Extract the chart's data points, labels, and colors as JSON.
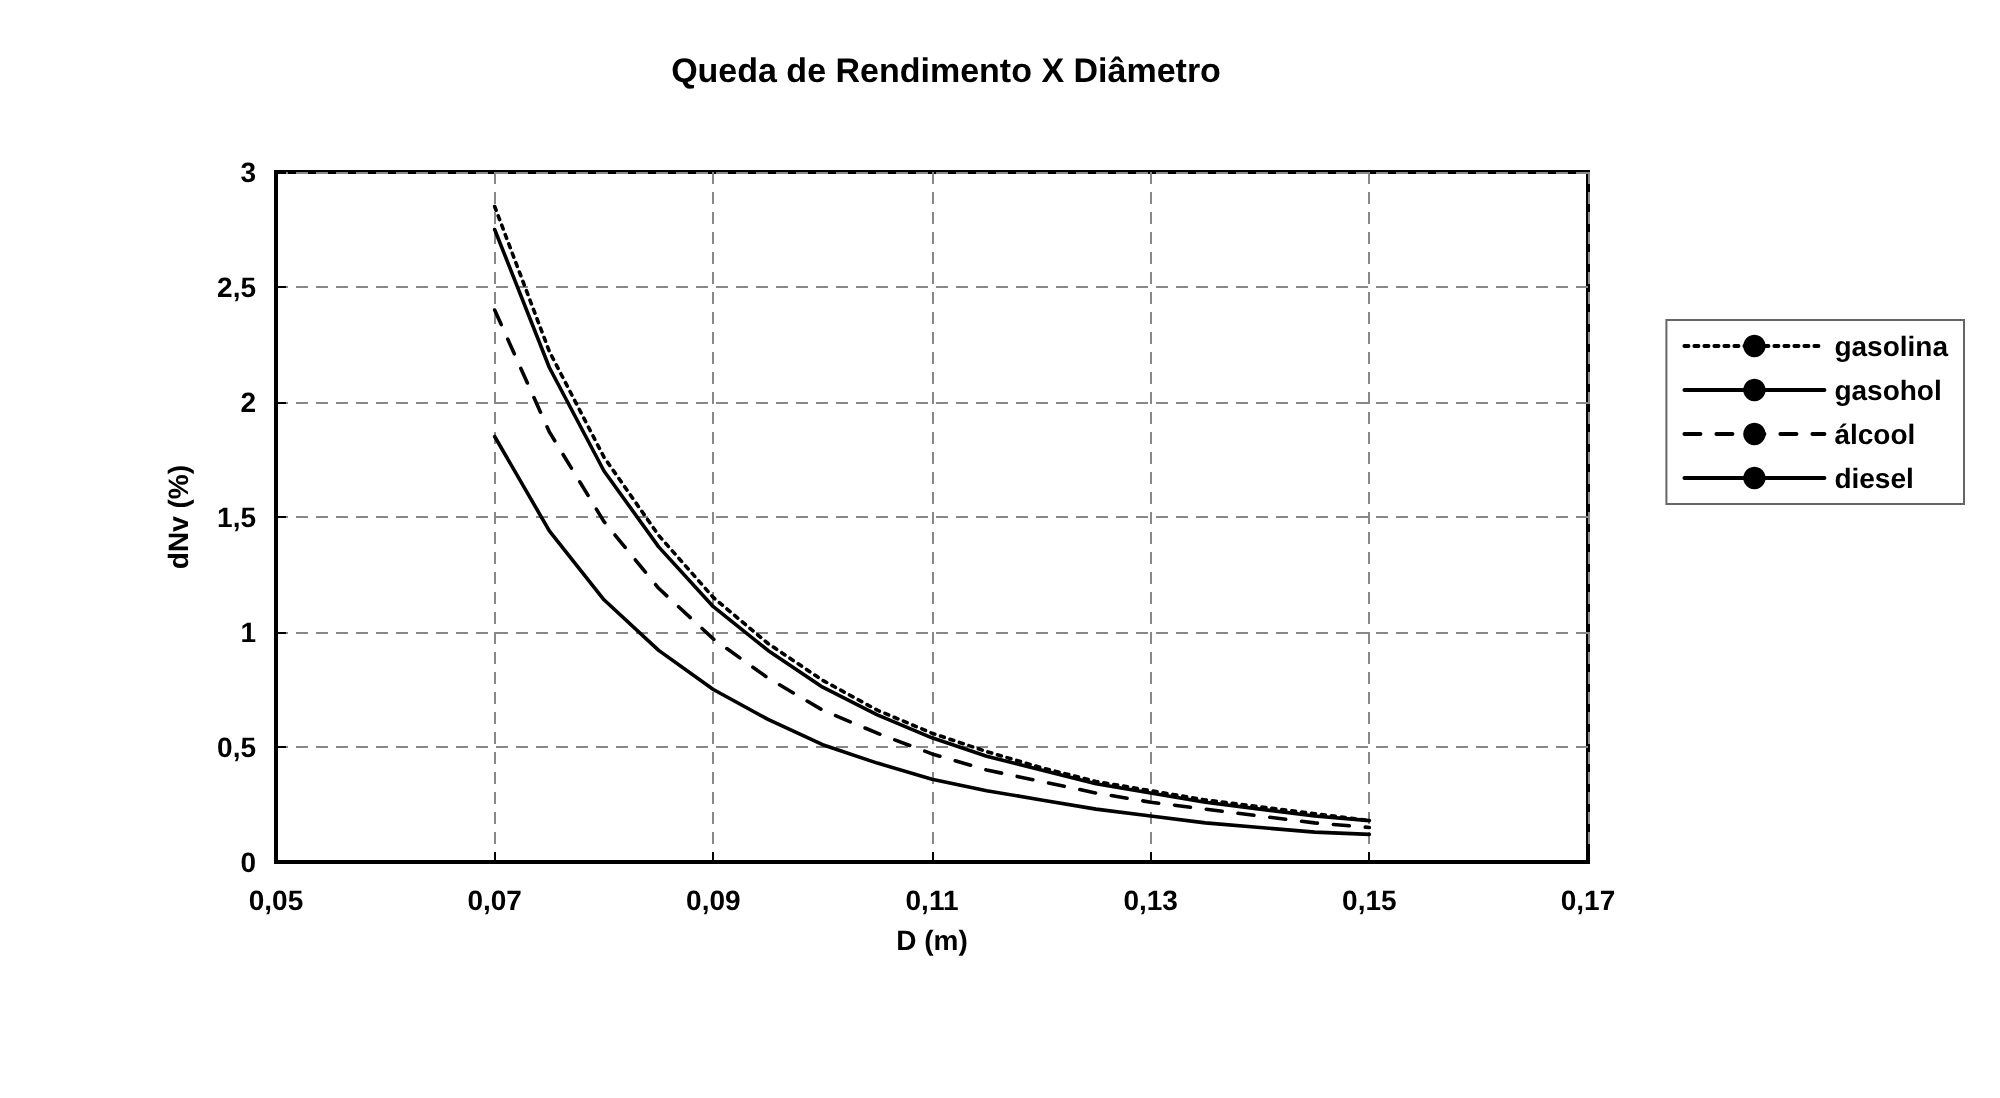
{
  "chart_data": {
    "type": "line",
    "title": "Queda de Rendimento X Diâmetro",
    "xlabel": "D (m)",
    "ylabel": "dNv (%)",
    "x": [
      0.07,
      0.075,
      0.08,
      0.085,
      0.09,
      0.095,
      0.1,
      0.105,
      0.11,
      0.115,
      0.12,
      0.125,
      0.13,
      0.135,
      0.14,
      0.145,
      0.15
    ],
    "series": [
      {
        "name": "gasolina",
        "color": "#000000",
        "line_style": "dotted",
        "values": [
          2.85,
          2.22,
          1.76,
          1.42,
          1.15,
          0.95,
          0.79,
          0.66,
          0.56,
          0.48,
          0.41,
          0.35,
          0.31,
          0.27,
          0.24,
          0.21,
          0.18
        ]
      },
      {
        "name": "gasohol",
        "color": "#000000",
        "line_style": "solid",
        "values": [
          2.75,
          2.15,
          1.7,
          1.37,
          1.11,
          0.92,
          0.76,
          0.64,
          0.54,
          0.46,
          0.4,
          0.34,
          0.3,
          0.26,
          0.23,
          0.2,
          0.18
        ]
      },
      {
        "name": "álcool",
        "color": "#000000",
        "line_style": "dashed",
        "values": [
          2.4,
          1.87,
          1.48,
          1.19,
          0.97,
          0.8,
          0.66,
          0.56,
          0.47,
          0.4,
          0.35,
          0.3,
          0.26,
          0.23,
          0.2,
          0.17,
          0.15
        ]
      },
      {
        "name": "diesel",
        "color": "#000000",
        "line_style": "solid",
        "values": [
          1.85,
          1.44,
          1.14,
          0.92,
          0.75,
          0.62,
          0.51,
          0.43,
          0.36,
          0.31,
          0.27,
          0.23,
          0.2,
          0.17,
          0.15,
          0.13,
          0.12
        ]
      }
    ],
    "xlim": [
      0.05,
      0.17
    ],
    "xticks": [
      {
        "value": 0.05,
        "label": "0,05"
      },
      {
        "value": 0.07,
        "label": "0,07"
      },
      {
        "value": 0.09,
        "label": "0,09"
      },
      {
        "value": 0.11,
        "label": "0,11"
      },
      {
        "value": 0.13,
        "label": "0,13"
      },
      {
        "value": 0.15,
        "label": "0,15"
      },
      {
        "value": 0.17,
        "label": "0,17"
      }
    ],
    "ylim": [
      0,
      3
    ],
    "yticks": [
      0,
      {
        "value": 0.5,
        "label": "0,5"
      },
      1,
      {
        "value": 1.5,
        "label": "1,5"
      },
      2,
      {
        "value": 2.5,
        "label": "2,5"
      },
      3
    ],
    "grid": true,
    "legend": "right",
    "marker": "none"
  }
}
